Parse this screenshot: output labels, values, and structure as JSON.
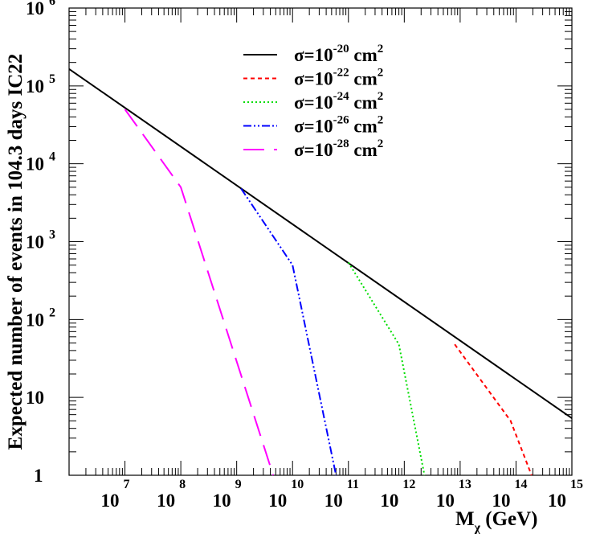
{
  "chart_data": {
    "type": "line",
    "title": "",
    "xlabel_main": "M",
    "xlabel_sub": "χ",
    "xlabel_unit": " (GeV)",
    "ylabel": "Expected number of events in 104.3 days IC22",
    "x_scale": "log",
    "y_scale": "log",
    "xlim": [
      1000000,
      1000000000000000
    ],
    "ylim": [
      1,
      1000000
    ],
    "grid": false,
    "legend_position": "top-right",
    "x_ticks": [
      {
        "base": "10",
        "exp": "7",
        "value": 10000000
      },
      {
        "base": "10",
        "exp": "8",
        "value": 100000000
      },
      {
        "base": "10",
        "exp": "9",
        "value": 1000000000
      },
      {
        "base": "10",
        "exp": "10",
        "value": 10000000000
      },
      {
        "base": "10",
        "exp": "11",
        "value": 100000000000
      },
      {
        "base": "10",
        "exp": "12",
        "value": 1000000000000
      },
      {
        "base": "10",
        "exp": "13",
        "value": 10000000000000
      },
      {
        "base": "10",
        "exp": "14",
        "value": 100000000000000
      },
      {
        "base": "10",
        "exp": "15",
        "value": 1000000000000000
      }
    ],
    "y_ticks": [
      {
        "base": "1",
        "exp": "",
        "value": 1
      },
      {
        "base": "10",
        "exp": "",
        "value": 10
      },
      {
        "base": "10",
        "exp": "2",
        "value": 100
      },
      {
        "base": "10",
        "exp": "3",
        "value": 1000
      },
      {
        "base": "10",
        "exp": "4",
        "value": 10000
      },
      {
        "base": "10",
        "exp": "5",
        "value": 100000
      },
      {
        "base": "10",
        "exp": "6",
        "value": 1000000
      }
    ],
    "series": [
      {
        "legend_base": "σ=10",
        "legend_exp": "-20",
        "legend_unit": " cm",
        "legend_unit_exp": "2",
        "color": "#000000",
        "dash": "",
        "width": 2,
        "x": [
          1000000,
          1000000000000000
        ],
        "y": [
          165000,
          5.4
        ]
      },
      {
        "legend_base": "σ=10",
        "legend_exp": "-22",
        "legend_unit": " cm",
        "legend_unit_exp": "2",
        "color": "#ff0000",
        "dash": "5,4",
        "width": 2,
        "x": [
          8000000000000,
          80000000000000,
          190000000000000
        ],
        "y": [
          48,
          5,
          1
        ]
      },
      {
        "legend_base": "σ=10",
        "legend_exp": "-24",
        "legend_unit": " cm",
        "legend_unit_exp": "2",
        "color": "#00dd00",
        "dash": "2,3",
        "width": 2,
        "x": [
          100000000000,
          800000000000,
          2300000000000
        ],
        "y": [
          540,
          48,
          1
        ]
      },
      {
        "legend_base": "σ=10",
        "legend_exp": "-26",
        "legend_unit": " cm",
        "legend_unit_exp": "2",
        "color": "#0000ff",
        "dash": "10,3,2,3,2,3",
        "width": 2,
        "x": [
          1200000000,
          10000000000,
          60000000000
        ],
        "y": [
          4800,
          500,
          1
        ]
      },
      {
        "legend_base": "σ=10",
        "legend_exp": "-28",
        "legend_unit": " cm",
        "legend_unit_exp": "2",
        "color": "#ff00ff",
        "dash": "26,12",
        "width": 2,
        "x": [
          10000000,
          100000000,
          4500000000
        ],
        "y": [
          50000,
          5000,
          1
        ]
      }
    ]
  }
}
